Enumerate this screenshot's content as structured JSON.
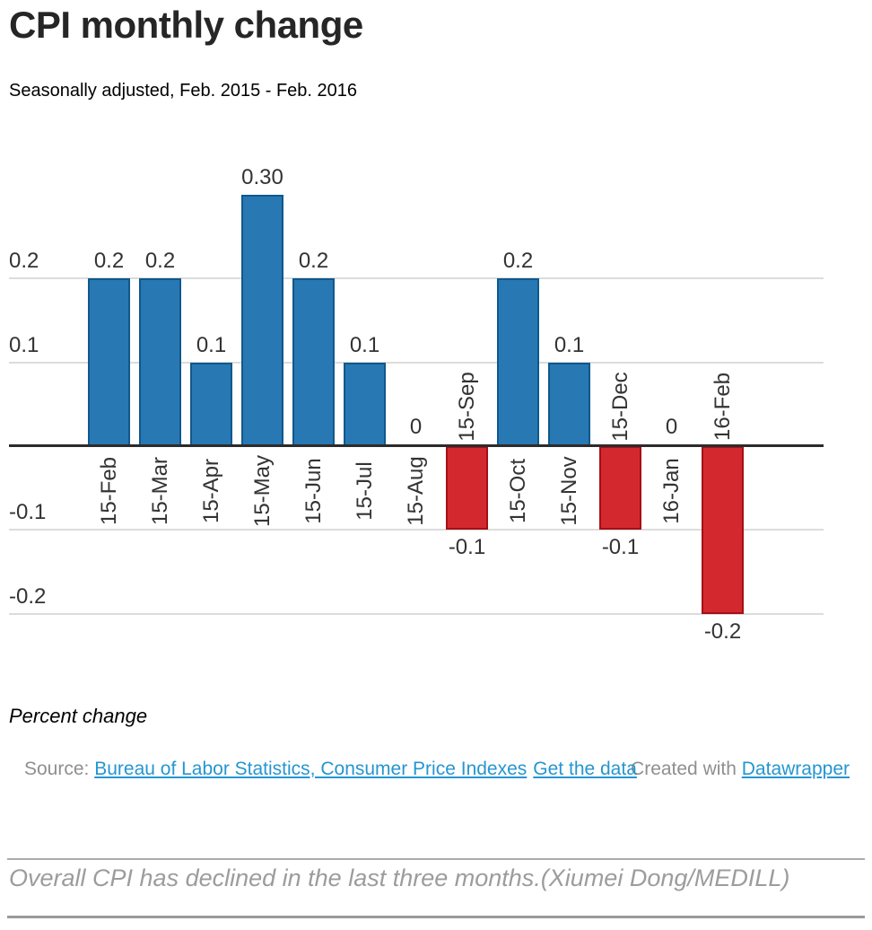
{
  "header": {
    "title": "CPI monthly change",
    "subtitle": "Seasonally adjusted, Feb. 2015 - Feb. 2016"
  },
  "chart_data": {
    "type": "bar",
    "title": "CPI monthly change",
    "subtitle": "Seasonally adjusted, Feb. 2015 - Feb. 2016",
    "xlabel": "",
    "ylabel": "Percent change",
    "categories": [
      "15-Feb",
      "15-Mar",
      "15-Apr",
      "15-May",
      "15-Jun",
      "15-Jul",
      "15-Aug",
      "15-Sep",
      "15-Oct",
      "15-Nov",
      "15-Dec",
      "16-Jan",
      "16-Feb"
    ],
    "values": [
      0.2,
      0.2,
      0.1,
      0.3,
      0.2,
      0.1,
      0,
      -0.1,
      0.2,
      0.1,
      -0.1,
      0,
      -0.2
    ],
    "value_labels": [
      "0.2",
      "0.2",
      "0.1",
      "0.30",
      "0.2",
      "0.1",
      "0",
      "-0.1",
      "0.2",
      "0.1",
      "-0.1",
      "0",
      "-0.2"
    ],
    "y_axis_ticks": [
      {
        "label": "0.2",
        "value": 0.2
      },
      {
        "label": "0.1",
        "value": 0.1
      },
      {
        "label": "-0.1",
        "value": -0.1
      },
      {
        "label": "-0.2",
        "value": -0.2
      }
    ],
    "ylim": [
      -0.27,
      0.36
    ],
    "grid": true,
    "legend_position": "none",
    "colors": {
      "positive_fill": "#2878b4",
      "positive_stroke": "#10588c",
      "negative_fill": "#d4282f",
      "negative_stroke": "#a50f16",
      "grid": "#dcdcdc",
      "axis": "#2b2b2b",
      "label": "#333333"
    }
  },
  "footer": {
    "axis_note": "Percent change",
    "source_prefix": "Source: ",
    "source_link": "Bureau of Labor Statistics, Consumer Price Indexes",
    "get_data_link": "Get the data",
    "created_with": "Created with ",
    "datawrapper_link": "Datawrapper",
    "link_color": "#2596d1"
  },
  "caption": {
    "text": "Overall CPI has declined in the last three months.(Xiumei Dong/MEDILL)"
  }
}
